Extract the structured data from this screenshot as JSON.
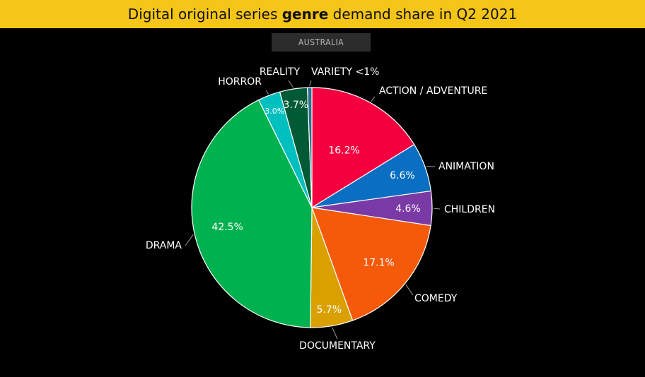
{
  "title": {
    "prefix": "Digital original series ",
    "emphasis": "genre",
    "suffix": " demand share in Q2 2021"
  },
  "region_badge": "AUSTRALIA",
  "colors": {
    "title_bar": "#f5c518",
    "background": "#000000"
  },
  "chart_data": {
    "type": "pie",
    "title": "Digital original series genre demand share in Q2 2021",
    "subtitle": "AUSTRALIA",
    "start": "12 o'clock, clockwise",
    "slices": [
      {
        "label": "ACTION / ADVENTURE",
        "value": 16.2,
        "display": "16.2%",
        "color": "#f5003f"
      },
      {
        "label": "ANIMATION",
        "value": 6.6,
        "display": "6.6%",
        "color": "#0a6fc2"
      },
      {
        "label": "CHILDREN",
        "value": 4.6,
        "display": "4.6%",
        "color": "#7a3aa6"
      },
      {
        "label": "COMEDY",
        "value": 17.1,
        "display": "17.1%",
        "color": "#f55a0a"
      },
      {
        "label": "DOCUMENTARY",
        "value": 5.7,
        "display": "5.7%",
        "color": "#d9a000"
      },
      {
        "label": "DRAMA",
        "value": 42.5,
        "display": "42.5%",
        "color": "#00b14f"
      },
      {
        "label": "HORROR",
        "value": 3.0,
        "display": "3.0%",
        "color": "#00bfbf"
      },
      {
        "label": "REALITY",
        "value": 3.7,
        "display": "3.7%",
        "color": "#005a35"
      },
      {
        "label": "VARIETY <1%",
        "value": 0.6,
        "display": "",
        "color": "#2e6e8e"
      }
    ]
  }
}
